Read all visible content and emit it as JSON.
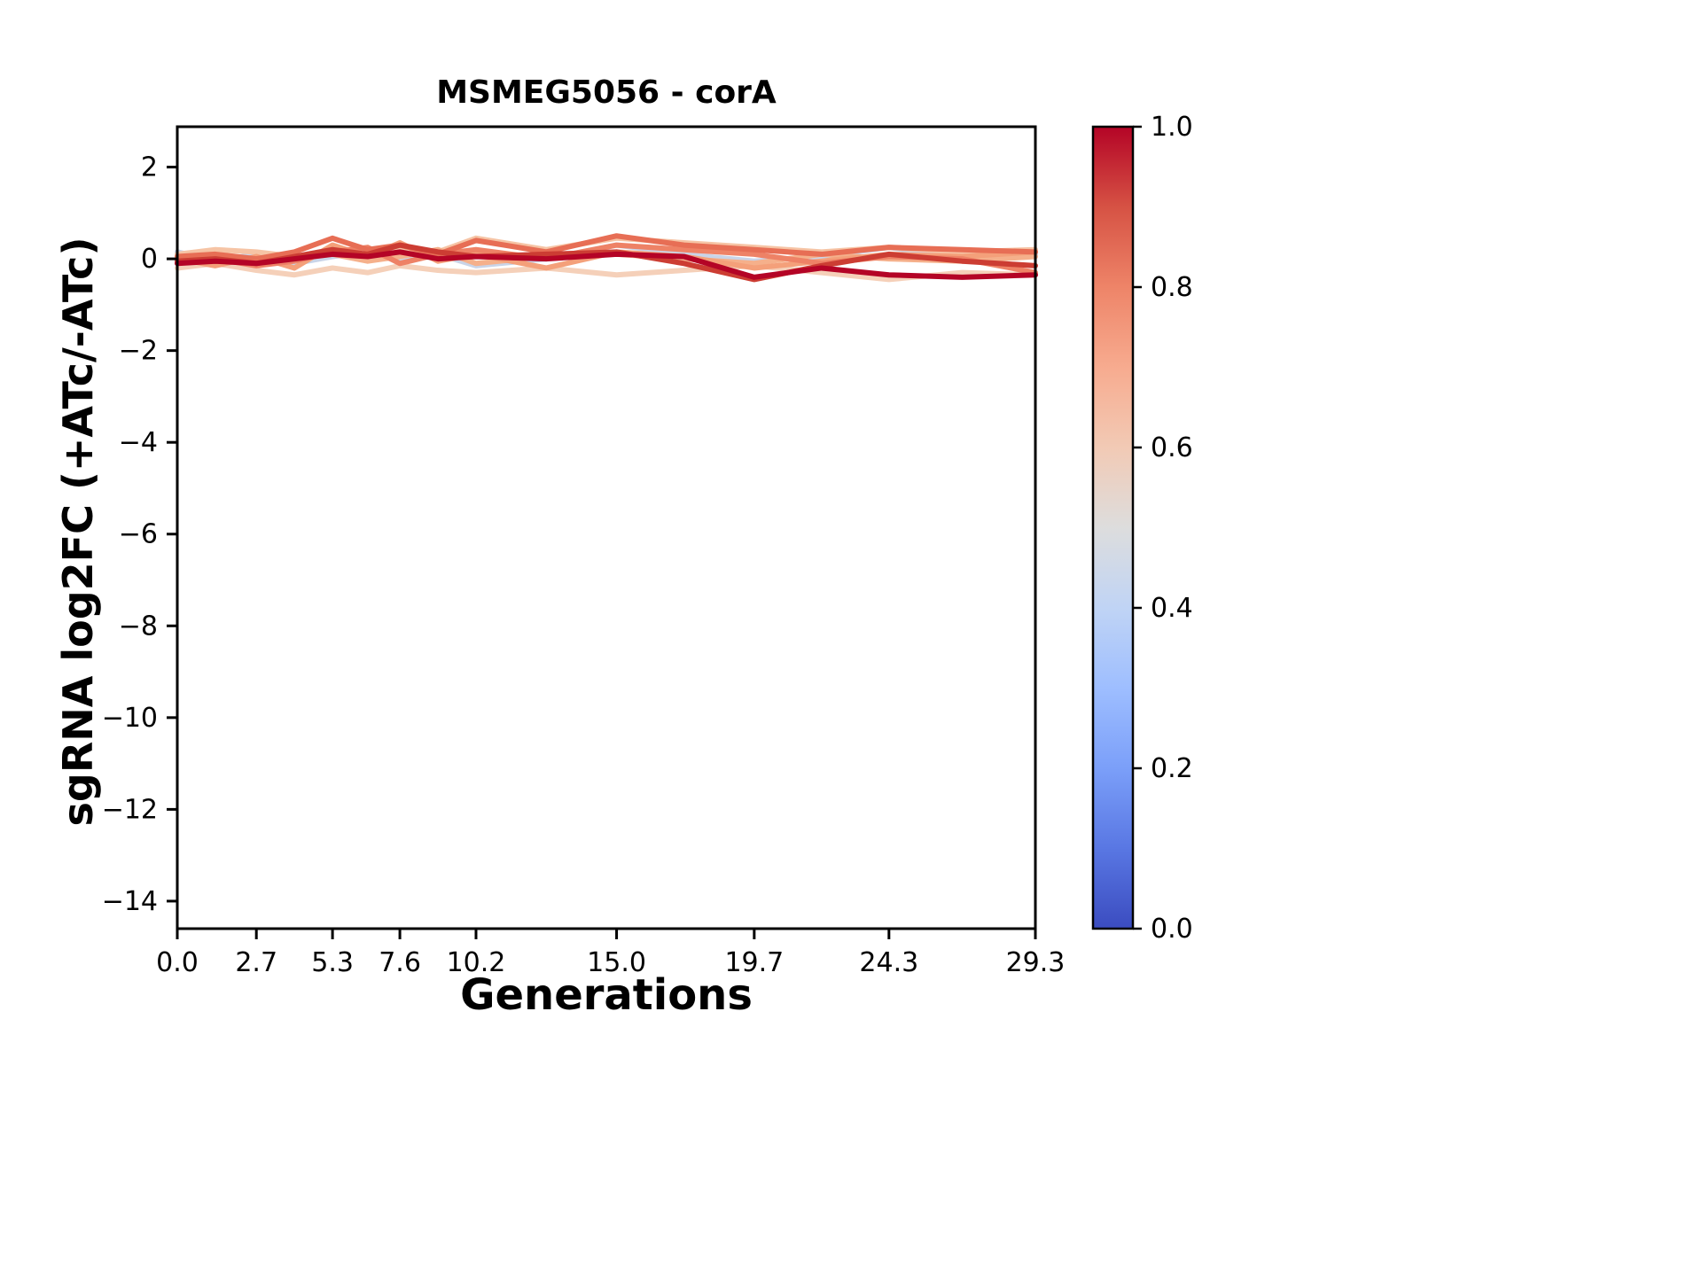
{
  "chart_data": {
    "type": "line",
    "title": "MSMEG5056 - corA",
    "xlabel": "Generations",
    "ylabel": "sgRNA log2FC (+ATc/-ATc)",
    "xlim": [
      0,
      29.3
    ],
    "ylim": [
      -14.6,
      2.88
    ],
    "grid": false,
    "legend_position": "none",
    "xtick_values": [
      0.0,
      2.7,
      5.3,
      7.6,
      10.2,
      15.0,
      19.7,
      24.3,
      29.3
    ],
    "xtick_labels": [
      "0.0",
      "2.7",
      "5.3",
      "7.6",
      "10.2",
      "15.0",
      "19.7",
      "24.3",
      "29.3"
    ],
    "ytick_values": [
      2,
      0,
      -2,
      -4,
      -6,
      -8,
      -10,
      -12,
      -14
    ],
    "ytick_labels": [
      "2",
      "0",
      "−2",
      "−4",
      "−6",
      "−8",
      "−10",
      "−12",
      "−14"
    ],
    "x": [
      0.0,
      1.3,
      2.7,
      4.0,
      5.3,
      6.5,
      7.6,
      8.9,
      10.2,
      12.6,
      15.0,
      17.3,
      19.7,
      22.0,
      24.3,
      26.8,
      29.3
    ],
    "series": [
      {
        "colormap_value": 0.42,
        "color": "#c9d4e8",
        "width": 6,
        "values": [
          0.15,
          -0.05,
          0.1,
          -0.1,
          0.05,
          0.15,
          -0.05,
          0.1,
          -0.15,
          0.0,
          0.3,
          0.1,
          -0.05,
          0.05,
          0.25,
          0.0,
          0.1
        ]
      },
      {
        "colormap_value": 0.58,
        "color": "#f5d0b9",
        "width": 6,
        "values": [
          -0.2,
          -0.1,
          -0.25,
          -0.35,
          -0.2,
          -0.3,
          -0.15,
          -0.25,
          -0.3,
          -0.2,
          -0.35,
          -0.25,
          -0.15,
          -0.3,
          -0.45,
          -0.3,
          -0.35
        ]
      },
      {
        "colormap_value": 0.62,
        "color": "#f6c4a5",
        "width": 6,
        "values": [
          0.1,
          0.2,
          0.15,
          0.05,
          0.2,
          0.1,
          0.25,
          0.15,
          0.45,
          0.2,
          0.45,
          0.35,
          0.25,
          0.15,
          0.25,
          0.15,
          0.2
        ]
      },
      {
        "colormap_value": 0.68,
        "color": "#f5b08b",
        "width": 6,
        "values": [
          -0.05,
          0.05,
          -0.1,
          0.0,
          0.1,
          -0.05,
          0.05,
          0.2,
          -0.1,
          0.05,
          0.1,
          0.0,
          -0.1,
          0.1,
          0.0,
          -0.05,
          0.05
        ]
      },
      {
        "colormap_value": 0.72,
        "color": "#f4a07a",
        "width": 6,
        "values": [
          0.0,
          -0.15,
          0.05,
          -0.2,
          0.3,
          0.05,
          0.35,
          -0.05,
          0.1,
          -0.2,
          0.15,
          0.05,
          -0.2,
          -0.05,
          0.1,
          0.05,
          0.15
        ]
      },
      {
        "colormap_value": 0.78,
        "color": "#ee8266",
        "width": 6,
        "values": [
          -0.1,
          0.0,
          -0.15,
          -0.05,
          0.15,
          0.25,
          -0.1,
          0.1,
          0.2,
          0.0,
          0.3,
          0.2,
          0.1,
          -0.1,
          0.05,
          0.0,
          -0.3
        ]
      },
      {
        "colormap_value": 0.82,
        "color": "#e76e55",
        "width": 6,
        "values": [
          0.05,
          0.1,
          0.0,
          0.15,
          0.45,
          0.2,
          0.3,
          0.1,
          0.4,
          0.15,
          0.5,
          0.3,
          0.2,
          0.1,
          0.25,
          0.2,
          0.15
        ]
      },
      {
        "colormap_value": 0.92,
        "color": "#cc3d33",
        "width": 6,
        "values": [
          -0.05,
          0.0,
          -0.1,
          0.05,
          0.2,
          0.1,
          0.3,
          0.15,
          0.05,
          0.1,
          0.15,
          -0.1,
          -0.45,
          -0.15,
          0.1,
          -0.05,
          -0.15
        ]
      },
      {
        "colormap_value": 1.0,
        "color": "#b40426",
        "width": 6,
        "values": [
          -0.1,
          -0.05,
          -0.1,
          0.0,
          0.1,
          0.05,
          0.15,
          0.0,
          0.05,
          0.0,
          0.1,
          0.05,
          -0.4,
          -0.2,
          -0.35,
          -0.4,
          -0.35
        ]
      }
    ],
    "colorbar": {
      "tick_values": [
        0.0,
        0.2,
        0.4,
        0.6,
        0.8,
        1.0
      ],
      "tick_labels": [
        "0.0",
        "0.2",
        "0.4",
        "0.6",
        "0.8",
        "1.0"
      ],
      "gradient": [
        {
          "stop": 0.0,
          "color": "#3b4cc0"
        },
        {
          "stop": 0.1,
          "color": "#5977e3"
        },
        {
          "stop": 0.2,
          "color": "#7b9ff9"
        },
        {
          "stop": 0.3,
          "color": "#9ebeff"
        },
        {
          "stop": 0.4,
          "color": "#c0d4f5"
        },
        {
          "stop": 0.5,
          "color": "#dddddd"
        },
        {
          "stop": 0.6,
          "color": "#f2cab5"
        },
        {
          "stop": 0.7,
          "color": "#f7ab8f"
        },
        {
          "stop": 0.8,
          "color": "#ee8468"
        },
        {
          "stop": 0.9,
          "color": "#d65244"
        },
        {
          "stop": 1.0,
          "color": "#b40426"
        }
      ]
    }
  }
}
